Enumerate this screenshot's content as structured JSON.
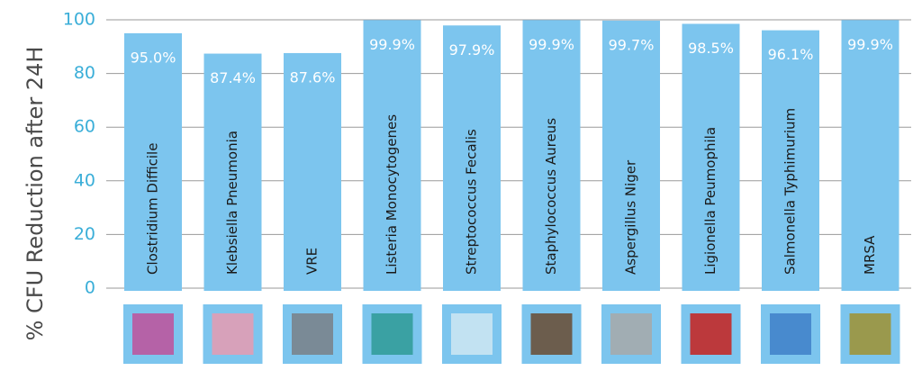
{
  "chart_data": {
    "type": "bar",
    "ylabel": "% CFU Reduction after 24H",
    "categories": [
      "Clostridium Difficile",
      "Klebsiella Pneumonia",
      "VRE",
      "Listeria Monocytogenes",
      "Streptococcus Fecalis",
      "Staphylococcus Aureus",
      "Aspergillus Niger",
      "Ligionella Peumophila",
      "Salmonella Typhimurium",
      "MRSA"
    ],
    "values": [
      95.0,
      87.4,
      87.6,
      99.9,
      97.9,
      99.9,
      99.7,
      98.5,
      96.1,
      99.9
    ],
    "value_labels": [
      "95.0%",
      "87.4%",
      "87.6%",
      "99.9%",
      "97.9%",
      "99.9%",
      "99.7%",
      "98.5%",
      "96.1%",
      "99.9%"
    ],
    "color": "#7cc5ee",
    "ylim": [
      0,
      100
    ],
    "yticks": [
      0,
      20,
      40,
      60,
      80,
      100
    ],
    "grid": true
  }
}
